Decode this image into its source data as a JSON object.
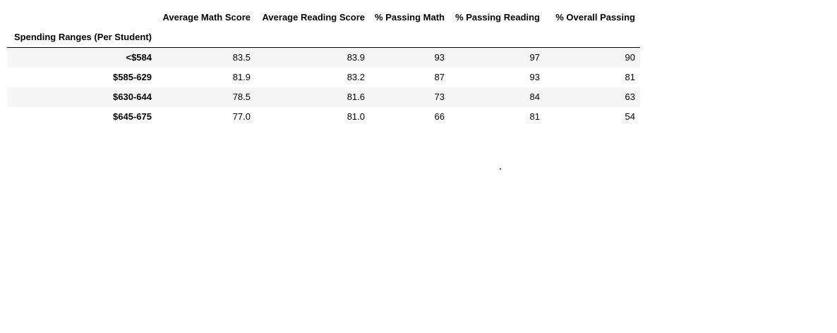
{
  "table": {
    "index_name": "Spending Ranges (Per Student)",
    "columns": [
      "Average Math Score",
      "Average Reading Score",
      "% Passing Math",
      "% Passing Reading",
      "% Overall Passing"
    ],
    "rows": [
      {
        "index": "<$584",
        "values": [
          "83.5",
          "83.9",
          "93",
          "97",
          "90"
        ]
      },
      {
        "index": "$585-629",
        "values": [
          "81.9",
          "83.2",
          "87",
          "93",
          "81"
        ]
      },
      {
        "index": "$630-644",
        "values": [
          "78.5",
          "81.6",
          "73",
          "84",
          "63"
        ]
      },
      {
        "index": "$645-675",
        "values": [
          "77.0",
          "81.0",
          "66",
          "81",
          "54"
        ]
      }
    ]
  }
}
